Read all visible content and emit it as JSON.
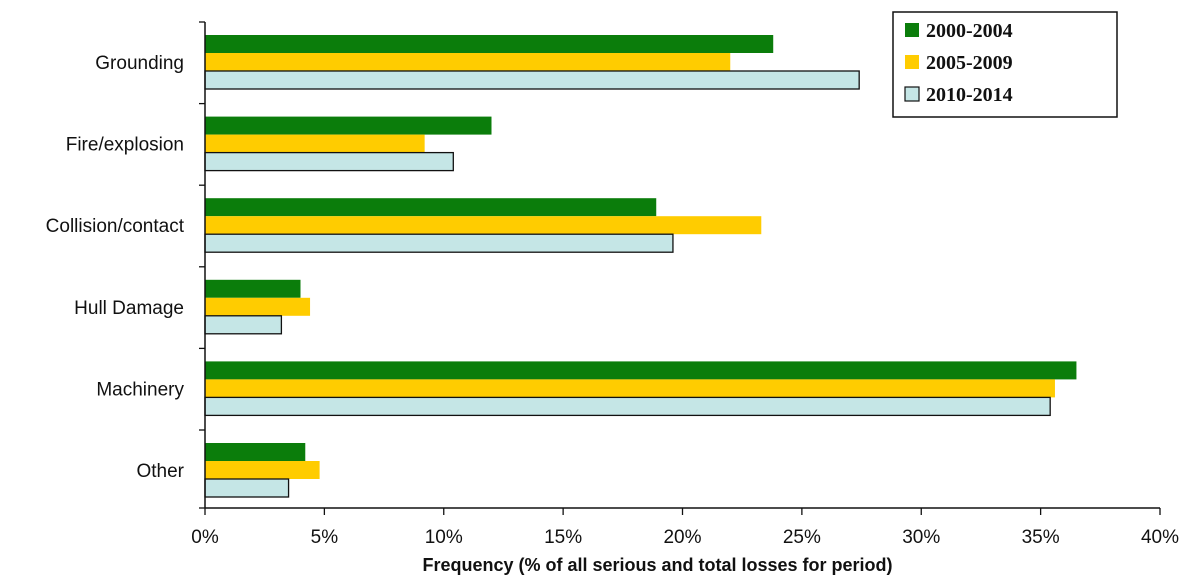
{
  "chart_data": {
    "type": "bar",
    "orientation": "horizontal",
    "categories": [
      "Grounding",
      "Fire/explosion",
      "Collision/contact",
      "Hull Damage",
      "Machinery",
      "Other"
    ],
    "series": [
      {
        "name": "2000-2004",
        "color": "#0b7d0b",
        "values": [
          23.8,
          12.0,
          18.9,
          4.0,
          36.5,
          4.2
        ]
      },
      {
        "name": "2005-2009",
        "color": "#ffcc00",
        "values": [
          22.0,
          9.2,
          23.3,
          4.4,
          35.6,
          4.8
        ]
      },
      {
        "name": "2010-2014",
        "color": "#c5e6e6",
        "values": [
          27.4,
          10.4,
          19.6,
          3.2,
          35.4,
          3.5
        ]
      }
    ],
    "xlabel": "Frequency (% of all serious and total losses for period)",
    "ylabel": "",
    "xlim": [
      0,
      40
    ],
    "xticks": [
      0,
      5,
      10,
      15,
      20,
      25,
      30,
      35,
      40
    ],
    "tick_labels": [
      "0%",
      "5%",
      "10%",
      "15%",
      "20%",
      "25%",
      "30%",
      "35%",
      "40%"
    ],
    "grid": false,
    "legend_position": "top-right"
  }
}
